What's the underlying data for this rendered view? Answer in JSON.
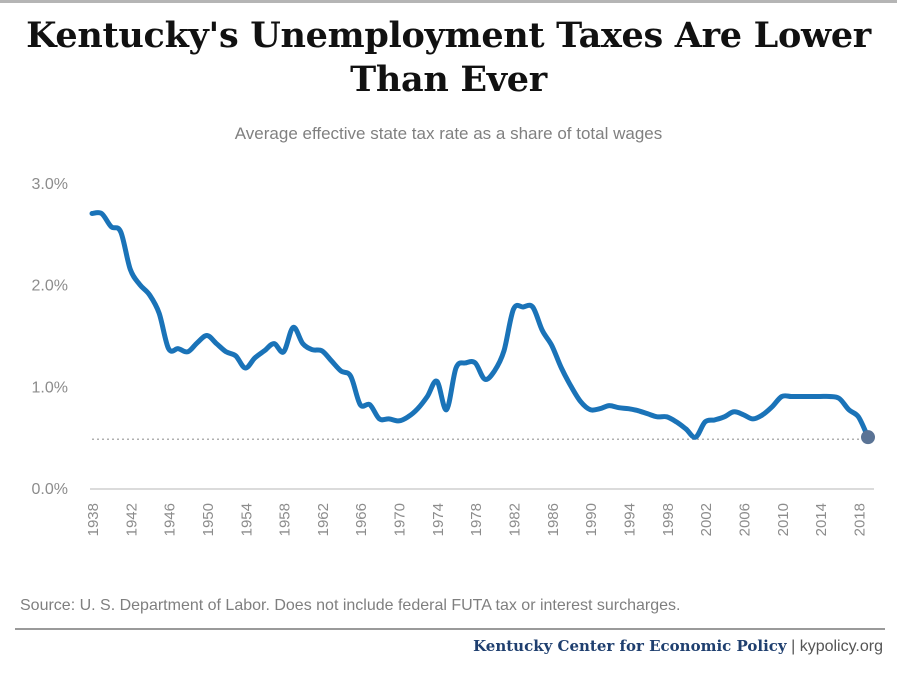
{
  "title": "Kentucky's Unemployment Taxes Are Lower Than Ever",
  "subtitle": "Average effective state tax rate as a share of total wages",
  "source": "Source: U. S. Department of Labor. Does not include federal FUTA tax or interest surcharges.",
  "footer": {
    "org": "Kentucky Center for Economic Policy",
    "separator": "|",
    "site": "kypolicy.org"
  },
  "colors": {
    "line": "#1a73b8",
    "marker": "#5a7395",
    "reference": "#b0b0b0",
    "axis": "#8c8c8c",
    "title": "#111111",
    "org": "#1f3f6f"
  },
  "chart_data": {
    "type": "line",
    "title": "Kentucky's Unemployment Taxes Are Lower Than Ever",
    "subtitle": "Average effective state tax rate as a share of total wages",
    "ylim": [
      0,
      3.0
    ],
    "yticks": [
      0,
      1.0,
      2.0,
      3.0
    ],
    "ytick_labels": [
      "0.0%",
      "1.0%",
      "2.0%",
      "3.0%"
    ],
    "xlim": [
      1938,
      2019
    ],
    "xticks": [
      1938,
      1942,
      1946,
      1950,
      1954,
      1958,
      1962,
      1966,
      1970,
      1974,
      1978,
      1982,
      1986,
      1990,
      1994,
      1998,
      2002,
      2006,
      2010,
      2014,
      2018
    ],
    "grid": false,
    "reference_line": {
      "y": 0.48,
      "style": "dotted"
    },
    "end_marker": {
      "x": 2019,
      "y": 0.5
    },
    "series": [
      {
        "x": [
          1938,
          1939,
          1940,
          1941,
          1942,
          1943,
          1944,
          1945,
          1946,
          1947,
          1948,
          1949,
          1950,
          1951,
          1952,
          1953,
          1954,
          1955,
          1956,
          1957,
          1958,
          1959,
          1960,
          1961,
          1962,
          1963,
          1964,
          1965,
          1966,
          1967,
          1968,
          1969,
          1970,
          1971,
          1972,
          1973,
          1974,
          1975,
          1976,
          1977,
          1978,
          1979,
          1980,
          1981,
          1982,
          1983,
          1984,
          1985,
          1986,
          1987,
          1988,
          1989,
          1990,
          1991,
          1992,
          1993,
          1994,
          1995,
          1996,
          1997,
          1998,
          1999,
          2000,
          2001,
          2002,
          2003,
          2004,
          2005,
          2006,
          2007,
          2008,
          2009,
          2010,
          2011,
          2012,
          2013,
          2014,
          2015,
          2016,
          2017,
          2018,
          2019
        ],
        "values": [
          2.7,
          2.7,
          2.57,
          2.52,
          2.15,
          2.0,
          1.9,
          1.72,
          1.37,
          1.37,
          1.34,
          1.43,
          1.5,
          1.42,
          1.34,
          1.3,
          1.18,
          1.28,
          1.35,
          1.42,
          1.34,
          1.58,
          1.42,
          1.36,
          1.35,
          1.25,
          1.15,
          1.1,
          0.82,
          0.82,
          0.68,
          0.68,
          0.66,
          0.7,
          0.78,
          0.9,
          1.05,
          0.77,
          1.18,
          1.23,
          1.23,
          1.07,
          1.15,
          1.35,
          1.76,
          1.78,
          1.78,
          1.55,
          1.4,
          1.18,
          1.0,
          0.85,
          0.77,
          0.78,
          0.81,
          0.79,
          0.78,
          0.76,
          0.73,
          0.7,
          0.7,
          0.65,
          0.58,
          0.5,
          0.65,
          0.67,
          0.7,
          0.75,
          0.72,
          0.68,
          0.72,
          0.8,
          0.9,
          0.9,
          0.9,
          0.9,
          0.9,
          0.9,
          0.88,
          0.77,
          0.7,
          0.5
        ]
      }
    ]
  }
}
